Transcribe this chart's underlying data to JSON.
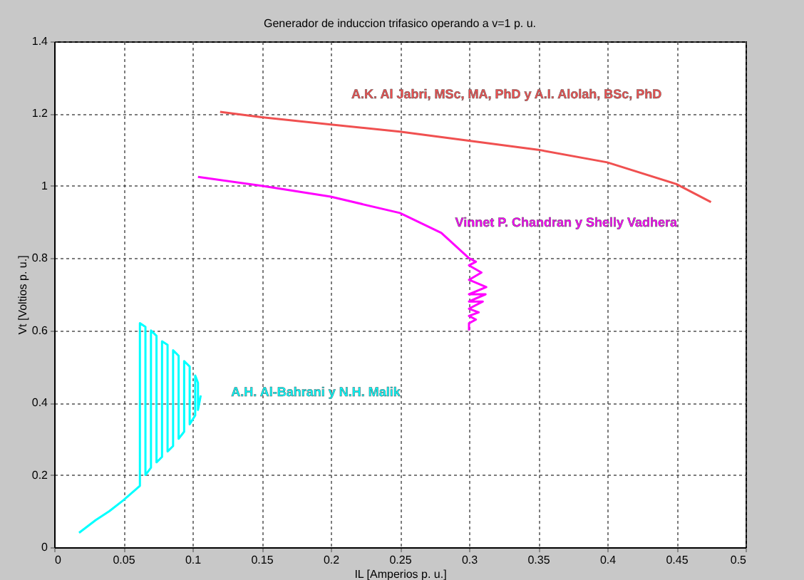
{
  "chart_data": {
    "type": "line",
    "title": "Generador de induccion trifasico operando a v=1 p. u.",
    "xlabel": "IL [Amperios p. u.]",
    "ylabel": "Vt [Voltios p. u.]",
    "xlim": [
      0,
      0.5
    ],
    "ylim": [
      0,
      1.4
    ],
    "xticks": [
      0,
      0.05,
      0.1,
      0.15,
      0.2,
      0.25,
      0.3,
      0.35,
      0.4,
      0.45,
      0.5
    ],
    "yticks": [
      0,
      0.2,
      0.4,
      0.6,
      0.8,
      1,
      1.2,
      1.4
    ],
    "grid": true,
    "legend": false,
    "series": [
      {
        "name": "A.K. Al Jabri, MSc, MA, PhD y A.I. Alolah, BSc, PhD",
        "color": "#f05050",
        "x": [
          0.12,
          0.15,
          0.2,
          0.25,
          0.3,
          0.35,
          0.4,
          0.45,
          0.475
        ],
        "values": [
          1.205,
          1.19,
          1.17,
          1.15,
          1.125,
          1.1,
          1.065,
          1.005,
          0.955
        ]
      },
      {
        "name": "Vinnet P. Chandran y Shelly Vadhera",
        "color": "#ff00ff",
        "x": [
          0.104,
          0.15,
          0.2,
          0.25,
          0.28,
          0.3,
          0.305,
          0.3,
          0.309,
          0.3,
          0.3125,
          0.3,
          0.312,
          0.3,
          0.31,
          0.3,
          0.307,
          0.3,
          0.305,
          0.3,
          0.3
        ],
        "values": [
          1.025,
          1.0,
          0.97,
          0.925,
          0.87,
          0.8,
          0.79,
          0.78,
          0.76,
          0.74,
          0.72,
          0.7,
          0.7,
          0.68,
          0.68,
          0.66,
          0.65,
          0.64,
          0.63,
          0.62,
          0.6
        ]
      },
      {
        "name": "A.H. Al-Bahrani y N.H. Malik",
        "color": "#00ffff",
        "x": [
          0.018,
          0.03,
          0.04,
          0.05,
          0.062,
          0.062,
          0.066,
          0.066,
          0.07,
          0.07,
          0.074,
          0.074,
          0.078,
          0.078,
          0.082,
          0.082,
          0.086,
          0.086,
          0.09,
          0.09,
          0.094,
          0.094,
          0.098,
          0.098,
          0.102,
          0.102,
          0.104,
          0.104,
          0.106
        ],
        "values": [
          0.04,
          0.075,
          0.1,
          0.13,
          0.17,
          0.62,
          0.61,
          0.2,
          0.22,
          0.6,
          0.585,
          0.235,
          0.25,
          0.57,
          0.56,
          0.265,
          0.28,
          0.545,
          0.53,
          0.3,
          0.32,
          0.515,
          0.5,
          0.34,
          0.365,
          0.475,
          0.455,
          0.38,
          0.42
        ]
      }
    ]
  }
}
